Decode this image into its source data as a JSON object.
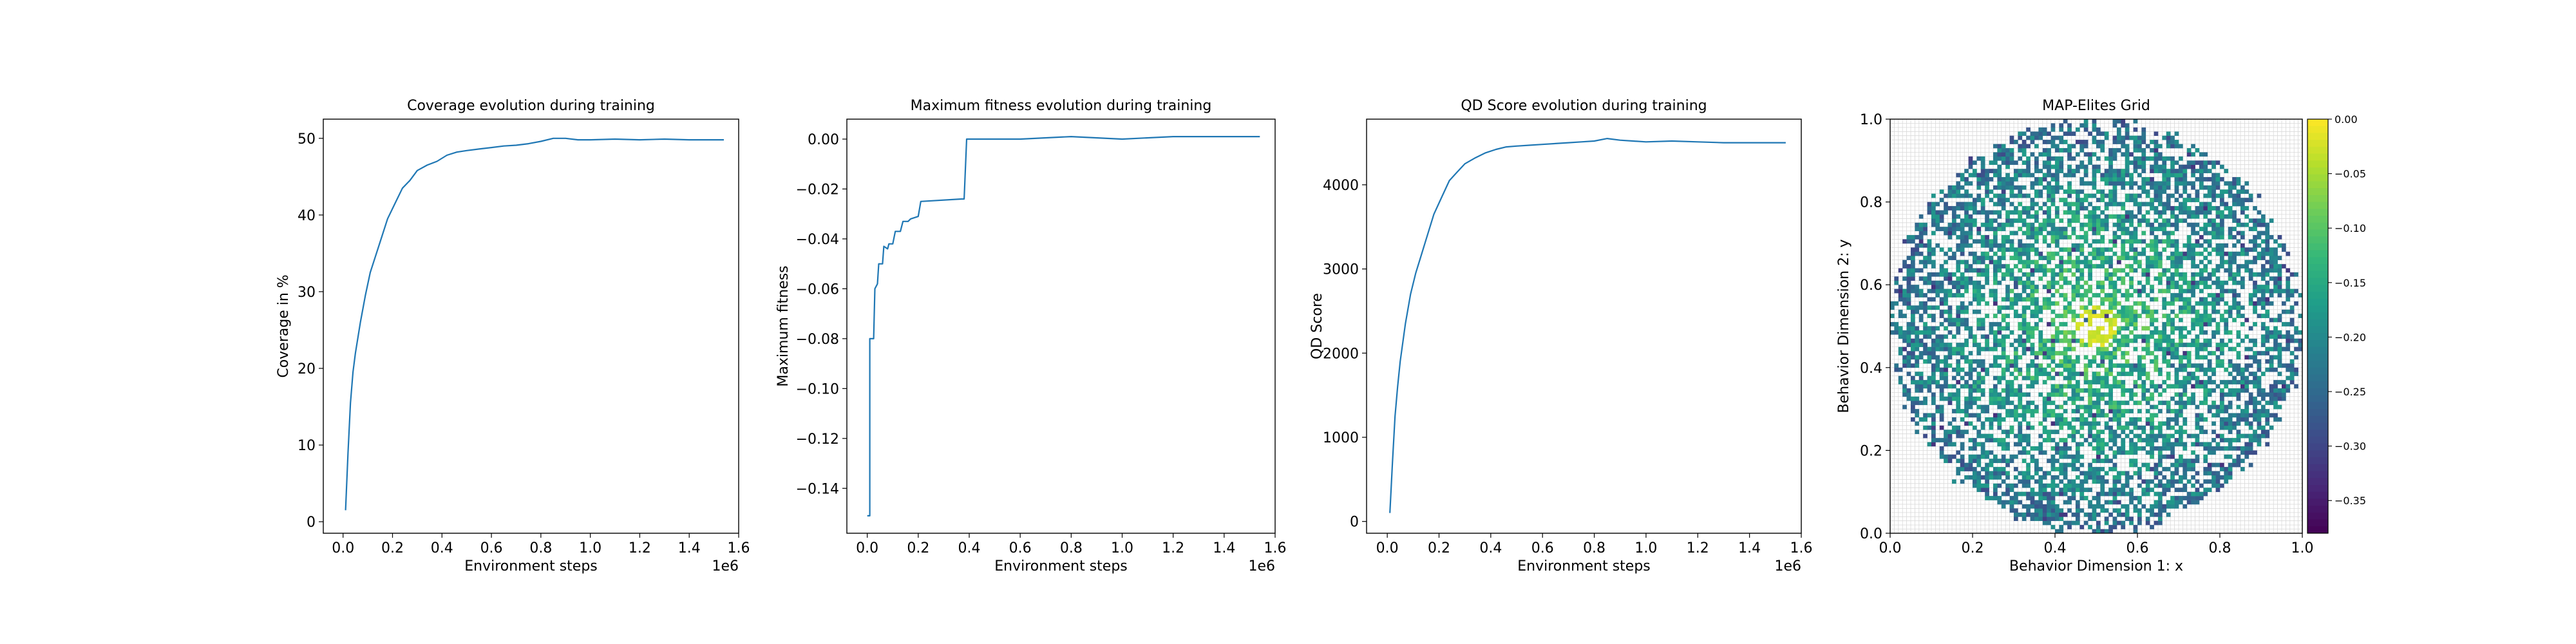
{
  "chart_data": [
    {
      "type": "line",
      "title": "Coverage evolution during training",
      "xlabel": "Environment steps",
      "ylabel": "Coverage in %",
      "x_offset_label": "1e6",
      "xlim": [
        -0.08,
        1.6
      ],
      "ylim": [
        -1.5,
        52.5
      ],
      "xticks": [
        0.0,
        0.2,
        0.4,
        0.6,
        0.8,
        1.0,
        1.2,
        1.4,
        1.6
      ],
      "xtick_labels": [
        "0.0",
        "0.2",
        "0.4",
        "0.6",
        "0.8",
        "1.0",
        "1.2",
        "1.4",
        "1.6"
      ],
      "yticks": [
        0,
        10,
        20,
        30,
        40,
        50
      ],
      "ytick_labels": [
        "0",
        "10",
        "20",
        "30",
        "40",
        "50"
      ],
      "color": "#1f77b4",
      "series": [
        {
          "x": [
            0.01,
            0.02,
            0.03,
            0.04,
            0.05,
            0.07,
            0.09,
            0.11,
            0.13,
            0.15,
            0.18,
            0.21,
            0.24,
            0.27,
            0.3,
            0.34,
            0.38,
            0.42,
            0.46,
            0.5,
            0.55,
            0.6,
            0.65,
            0.7,
            0.75,
            0.8,
            0.85,
            0.9,
            0.95,
            1.0,
            1.1,
            1.2,
            1.3,
            1.4,
            1.54
          ],
          "y": [
            1.5,
            9.0,
            15.5,
            19.5,
            22.0,
            26.0,
            29.5,
            32.5,
            34.5,
            36.5,
            39.5,
            41.5,
            43.5,
            44.5,
            45.8,
            46.5,
            47.0,
            47.8,
            48.2,
            48.4,
            48.6,
            48.8,
            49.0,
            49.1,
            49.3,
            49.6,
            50.0,
            50.0,
            49.8,
            49.8,
            49.9,
            49.8,
            49.9,
            49.8,
            49.8
          ]
        }
      ]
    },
    {
      "type": "line",
      "title": "Maximum fitness evolution during training",
      "xlabel": "Environment steps",
      "ylabel": "Maximum fitness",
      "x_offset_label": "1e6",
      "xlim": [
        -0.08,
        1.6
      ],
      "ylim": [
        -0.158,
        0.008
      ],
      "xticks": [
        0.0,
        0.2,
        0.4,
        0.6,
        0.8,
        1.0,
        1.2,
        1.4,
        1.6
      ],
      "xtick_labels": [
        "0.0",
        "0.2",
        "0.4",
        "0.6",
        "0.8",
        "1.0",
        "1.2",
        "1.4",
        "1.6"
      ],
      "yticks": [
        0.0,
        -0.02,
        -0.04,
        -0.06,
        -0.08,
        -0.1,
        -0.12,
        -0.14
      ],
      "ytick_labels": [
        "0.00",
        "−0.02",
        "−0.04",
        "−0.06",
        "−0.08",
        "−0.10",
        "−0.12",
        "−0.14"
      ],
      "color": "#1f77b4",
      "series": [
        {
          "x": [
            0.0,
            0.01,
            0.01,
            0.025,
            0.03,
            0.04,
            0.045,
            0.06,
            0.065,
            0.08,
            0.085,
            0.1,
            0.11,
            0.13,
            0.14,
            0.16,
            0.17,
            0.2,
            0.21,
            0.37,
            0.38,
            0.39,
            0.4,
            0.6,
            0.8,
            1.0,
            1.2,
            1.4,
            1.54
          ],
          "y": [
            -0.151,
            -0.151,
            -0.08,
            -0.08,
            -0.06,
            -0.058,
            -0.05,
            -0.05,
            -0.043,
            -0.044,
            -0.042,
            -0.042,
            -0.037,
            -0.037,
            -0.033,
            -0.033,
            -0.032,
            -0.031,
            -0.025,
            -0.024,
            -0.024,
            0.0,
            0.0,
            0.0,
            0.001,
            0.0,
            0.001,
            0.001,
            0.001
          ]
        }
      ]
    },
    {
      "type": "line",
      "title": "QD Score evolution during training",
      "xlabel": "Environment steps",
      "ylabel": "QD Score",
      "x_offset_label": "1e6",
      "xlim": [
        -0.08,
        1.6
      ],
      "ylim": [
        -140,
        4780
      ],
      "xticks": [
        0.0,
        0.2,
        0.4,
        0.6,
        0.8,
        1.0,
        1.2,
        1.4,
        1.6
      ],
      "xtick_labels": [
        "0.0",
        "0.2",
        "0.4",
        "0.6",
        "0.8",
        "1.0",
        "1.2",
        "1.4",
        "1.6"
      ],
      "yticks": [
        0,
        1000,
        2000,
        3000,
        4000
      ],
      "ytick_labels": [
        "0",
        "1000",
        "2000",
        "3000",
        "4000"
      ],
      "color": "#1f77b4",
      "series": [
        {
          "x": [
            0.01,
            0.02,
            0.03,
            0.04,
            0.05,
            0.07,
            0.09,
            0.11,
            0.13,
            0.15,
            0.18,
            0.21,
            0.24,
            0.27,
            0.3,
            0.34,
            0.38,
            0.42,
            0.46,
            0.5,
            0.55,
            0.6,
            0.65,
            0.7,
            0.75,
            0.8,
            0.85,
            0.9,
            0.95,
            1.0,
            1.1,
            1.2,
            1.3,
            1.4,
            1.54
          ],
          "y": [
            100,
            700,
            1250,
            1600,
            1900,
            2350,
            2700,
            2950,
            3150,
            3350,
            3650,
            3850,
            4050,
            4150,
            4250,
            4320,
            4380,
            4420,
            4450,
            4460,
            4470,
            4480,
            4490,
            4500,
            4510,
            4520,
            4550,
            4530,
            4520,
            4510,
            4520,
            4510,
            4500,
            4500,
            4500
          ]
        }
      ]
    },
    {
      "type": "heatmap",
      "title": "MAP-Elites Grid",
      "xlabel": "Behavior Dimension 1: x",
      "ylabel": "Behavior Dimension 2: y",
      "xlim": [
        0.0,
        1.0
      ],
      "ylim": [
        0.0,
        1.0
      ],
      "xticks": [
        0.0,
        0.2,
        0.4,
        0.6,
        0.8,
        1.0
      ],
      "xtick_labels": [
        "0.0",
        "0.2",
        "0.4",
        "0.6",
        "0.8",
        "1.0"
      ],
      "yticks": [
        0.0,
        0.2,
        0.4,
        0.6,
        0.8,
        1.0
      ],
      "ytick_labels": [
        "0.0",
        "0.2",
        "0.4",
        "0.6",
        "0.8",
        "1.0"
      ],
      "grid": true,
      "grid_cells": 100,
      "filled_region": {
        "center": [
          0.5,
          0.5
        ],
        "radius": 0.5,
        "coverage_percent": 50
      },
      "colormap": "viridis",
      "vmin": -0.38,
      "vmax": 0.0,
      "colorbar_ticks": [
        0.0,
        -0.05,
        -0.1,
        -0.15,
        -0.2,
        -0.25,
        -0.3,
        -0.35
      ],
      "colorbar_tick_labels": [
        "0.00",
        "−0.05",
        "−0.10",
        "−0.15",
        "−0.20",
        "−0.25",
        "−0.30",
        "−0.35"
      ]
    }
  ]
}
